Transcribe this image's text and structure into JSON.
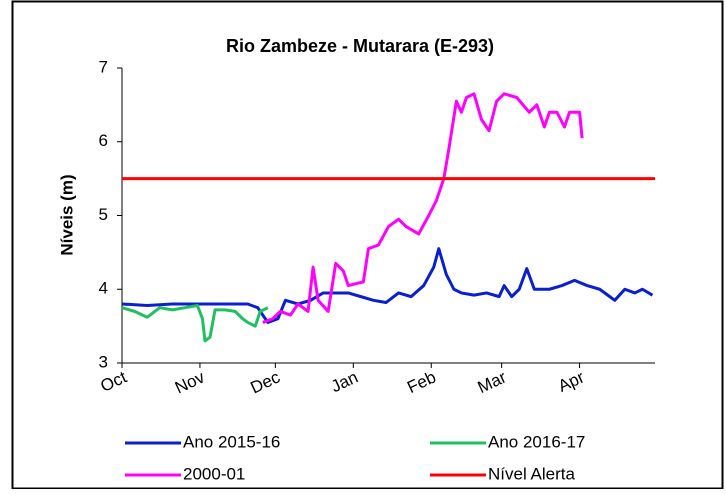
{
  "chart_data": {
    "type": "line",
    "title": "Rio Zambeze - Mutarara (E-293)",
    "y_label": "Níveis (m)",
    "xlim": [
      0,
      212
    ],
    "xticks": [
      {
        "value": 0,
        "label": "Oct"
      },
      {
        "value": 31,
        "label": "Nov"
      },
      {
        "value": 61,
        "label": "Dec"
      },
      {
        "value": 92,
        "label": "Jan"
      },
      {
        "value": 123,
        "label": "Feb"
      },
      {
        "value": 151,
        "label": "Mar"
      },
      {
        "value": 182,
        "label": "Apr"
      }
    ],
    "ylim": [
      3,
      7
    ],
    "yticks": [
      3,
      4,
      5,
      6,
      7
    ],
    "grid": false,
    "legend": "bottom",
    "series": [
      {
        "name": "Ano 2015-16",
        "color": "#0a1fd0",
        "x": [
          0,
          10,
          20,
          30,
          40,
          50,
          54,
          58,
          62,
          65,
          70,
          75,
          80,
          90,
          95,
          100,
          105,
          110,
          115,
          120,
          124,
          126,
          129,
          132,
          135,
          140,
          145,
          150,
          152,
          155,
          158,
          161,
          164,
          170,
          175,
          180,
          185,
          190,
          194,
          196,
          200,
          204,
          207,
          211
        ],
        "values": [
          3.8,
          3.78,
          3.8,
          3.8,
          3.8,
          3.8,
          3.75,
          3.55,
          3.6,
          3.85,
          3.8,
          3.85,
          3.95,
          3.95,
          3.9,
          3.85,
          3.82,
          3.95,
          3.9,
          4.05,
          4.3,
          4.55,
          4.2,
          4.0,
          3.95,
          3.92,
          3.95,
          3.9,
          4.05,
          3.9,
          4.0,
          4.28,
          4.0,
          4.0,
          4.05,
          4.12,
          4.05,
          4.0,
          3.9,
          3.85,
          4.0,
          3.95,
          4.0,
          3.92
        ]
      },
      {
        "name": "Ano 2016-17",
        "color": "#1fc060",
        "x": [
          0,
          5,
          10,
          15,
          20,
          25,
          30,
          32,
          33,
          35,
          37,
          41,
          45,
          48,
          50,
          53,
          55,
          58
        ],
        "values": [
          3.75,
          3.7,
          3.62,
          3.75,
          3.72,
          3.75,
          3.78,
          3.6,
          3.3,
          3.35,
          3.72,
          3.72,
          3.7,
          3.6,
          3.55,
          3.5,
          3.7,
          3.75
        ]
      },
      {
        "name": "2000-01",
        "color": "#ff00ff",
        "x": [
          56,
          60,
          63,
          67,
          70,
          72,
          74,
          76,
          78,
          82,
          85,
          88,
          90,
          96,
          98,
          102,
          106,
          110,
          113,
          118,
          122,
          125,
          128,
          130,
          133,
          135,
          137,
          140,
          143,
          146,
          149,
          152,
          157,
          162,
          165,
          168,
          170,
          173,
          176,
          178,
          182,
          183
        ],
        "values": [
          3.55,
          3.6,
          3.7,
          3.65,
          3.8,
          3.75,
          3.7,
          4.3,
          3.85,
          3.7,
          4.35,
          4.25,
          4.05,
          4.1,
          4.55,
          4.6,
          4.85,
          4.95,
          4.85,
          4.75,
          5.0,
          5.2,
          5.5,
          5.9,
          6.55,
          6.4,
          6.6,
          6.65,
          6.3,
          6.15,
          6.55,
          6.65,
          6.6,
          6.4,
          6.5,
          6.2,
          6.4,
          6.4,
          6.2,
          6.4,
          6.4,
          6.05
        ]
      },
      {
        "name": "Nível Alerta",
        "color": "#ff0000",
        "x": [
          0,
          212
        ],
        "values": [
          5.5,
          5.5
        ]
      }
    ]
  }
}
